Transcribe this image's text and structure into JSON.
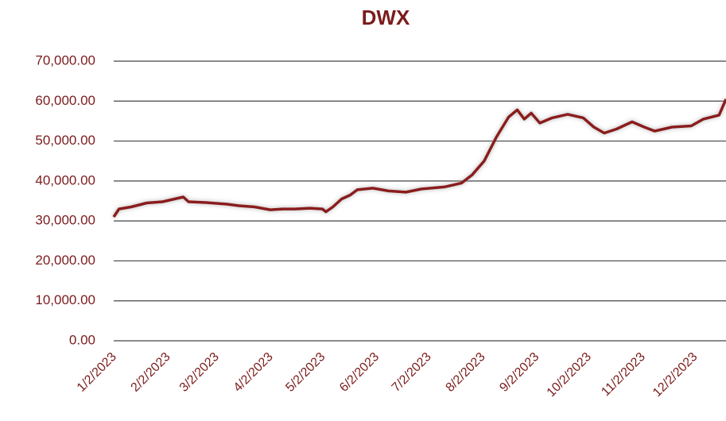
{
  "chart_data": {
    "type": "line",
    "title": "DWX",
    "color": "#8b1a1a",
    "grid": true,
    "x": [
      "1/2/2023",
      "1/5/2023",
      "1/12/2023",
      "1/21/2023",
      "1/30/2023",
      "2/6/2023",
      "2/11/2023",
      "2/14/2023",
      "2/24/2023",
      "3/8/2023",
      "3/15/2023",
      "3/24/2023",
      "4/2/2023",
      "4/9/2023",
      "4/16/2023",
      "4/25/2023",
      "5/2/2023",
      "5/4/2023",
      "5/8/2023",
      "5/13/2023",
      "5/18/2023",
      "5/22/2023",
      "5/31/2023",
      "6/9/2023",
      "6/19/2023",
      "6/28/2023",
      "7/11/2023",
      "7/21/2023",
      "7/27/2023",
      "8/3/2023",
      "8/10/2023",
      "8/17/2023",
      "8/22/2023",
      "8/26/2023",
      "8/30/2023",
      "9/4/2023",
      "9/11/2023",
      "9/20/2023",
      "9/29/2023",
      "10/5/2023",
      "10/11/2023",
      "10/18/2023",
      "10/27/2023",
      "11/3/2023",
      "11/9/2023",
      "11/19/2023",
      "11/30/2023",
      "12/7/2023",
      "12/16/2023",
      "12/20/2023"
    ],
    "values": [
      31000,
      33000,
      33500,
      34500,
      34800,
      35500,
      36000,
      34800,
      34600,
      34200,
      33800,
      33500,
      32800,
      33000,
      33000,
      33200,
      33000,
      32300,
      33500,
      35500,
      36500,
      37800,
      38200,
      37500,
      37200,
      38000,
      38500,
      39500,
      41500,
      45000,
      51000,
      56000,
      57800,
      55500,
      57000,
      54500,
      55800,
      56700,
      55800,
      53500,
      52000,
      53000,
      54800,
      53500,
      52500,
      53500,
      53800,
      55500,
      56500,
      60500
    ],
    "xlim": [
      "1/2/2023",
      "12/20/2023"
    ],
    "xticks": [
      "1/2/2023",
      "2/2/2023",
      "3/2/2023",
      "4/2/2023",
      "5/2/2023",
      "6/2/2023",
      "7/2/2023",
      "8/2/2023",
      "9/2/2023",
      "10/2/2023",
      "11/2/2023",
      "12/2/2023"
    ],
    "ylim": [
      0,
      70000
    ],
    "yticks": [
      {
        "value": 0,
        "label": "0.00"
      },
      {
        "value": 10000,
        "label": "10,000.00"
      },
      {
        "value": 20000,
        "label": "20,000.00"
      },
      {
        "value": 30000,
        "label": "30,000.00"
      },
      {
        "value": 40000,
        "label": "40,000.00"
      },
      {
        "value": 50000,
        "label": "50,000.00"
      },
      {
        "value": 60000,
        "label": "60,000.00"
      },
      {
        "value": 70000,
        "label": "70,000.00"
      }
    ]
  }
}
